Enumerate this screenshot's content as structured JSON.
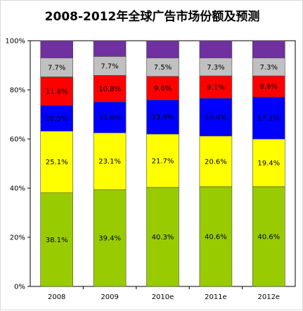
{
  "chart_data": {
    "type": "bar",
    "stacked": true,
    "percent_stacked": true,
    "title": "2008-2012年全球广告市场份额及预测",
    "xlabel": "",
    "ylabel": "",
    "categories": [
      "2008",
      "2009",
      "2010e",
      "2011e",
      "2012e"
    ],
    "ylim": [
      0,
      100
    ],
    "y_ticks": [
      "0%",
      "20%",
      "40%",
      "60%",
      "80%",
      "100%"
    ],
    "grid": false,
    "legend": "none",
    "series": [
      {
        "color": "#99cc00",
        "values": [
          38.1,
          39.4,
          40.3,
          40.6,
          40.6
        ],
        "labels": [
          "38.1%",
          "39.4%",
          "40.3%",
          "40.6%",
          "40.6%"
        ]
      },
      {
        "color": "#ffff00",
        "values": [
          25.1,
          23.1,
          21.7,
          20.6,
          19.4
        ],
        "labels": [
          "25.1%",
          "23.1%",
          "21.7%",
          "20.6%",
          "19.4%"
        ]
      },
      {
        "color": "#0000ff",
        "values": [
          10.5,
          12.6,
          13.9,
          15.4,
          17.1
        ],
        "labels": [
          "10.5%",
          "12.6%",
          "13.9%",
          "15.4%",
          "17.1%"
        ]
      },
      {
        "color": "#ff0000",
        "values": [
          11.6,
          10.8,
          9.6,
          9.1,
          8.6
        ],
        "labels": [
          "11.6%",
          "10.8%",
          "9.6%",
          "9.1%",
          "8.6%"
        ]
      },
      {
        "color": "#c0c0c0",
        "values": [
          7.7,
          7.7,
          7.5,
          7.3,
          7.3
        ],
        "labels": [
          "7.7%",
          "7.7%",
          "7.5%",
          "7.3%",
          "7.3%"
        ]
      },
      {
        "color": "#7030a0",
        "values": [
          7.0,
          6.4,
          7.0,
          7.0,
          7.0
        ],
        "labels": []
      }
    ]
  }
}
